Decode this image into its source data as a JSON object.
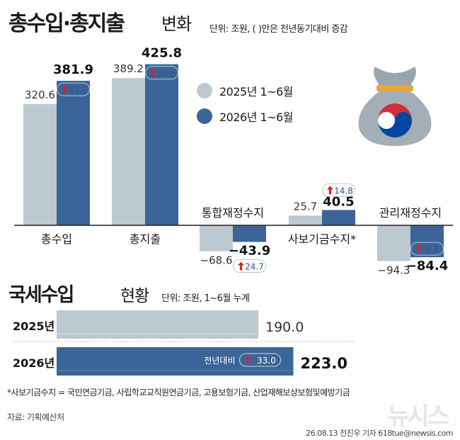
{
  "header": {
    "title": "총수입·총지출",
    "title_sub": "변화",
    "unit": "단위: 조원, ( )안은 전년동기대비 증감"
  },
  "colors": {
    "prev": "#bcc9d1",
    "curr": "#3b6598",
    "up_arrow": "#d8222a",
    "text": "#1b1b1b"
  },
  "legend": [
    {
      "label": "2025년 1~6월",
      "color": "#bcc9d1"
    },
    {
      "label": "2026년 1~6월",
      "color": "#3b6598"
    }
  ],
  "icon": "money-bag-icon",
  "chart_data": [
    {
      "type": "bar",
      "categories": [
        "총수입",
        "총지출",
        "통합재정수지",
        "사보기금수지*",
        "관리재정수지"
      ],
      "series": [
        {
          "name": "2025년 1~6월",
          "values": [
            320.6,
            389.2,
            -68.6,
            25.7,
            -94.3
          ]
        },
        {
          "name": "2026년 1~6월",
          "values": [
            381.9,
            425.8,
            -43.9,
            40.5,
            -84.4
          ]
        }
      ],
      "changes": [
        61.3,
        36.6,
        24.7,
        14.8,
        9.9
      ],
      "value_labels_prev": [
        "320.6",
        "389.2",
        "−68.6",
        "25.7",
        "−94.3"
      ],
      "value_labels_curr": [
        "381.9",
        "425.8",
        "−43.9",
        "40.5",
        "−84.4"
      ],
      "change_labels": [
        "61.3",
        "36.6",
        "24.7",
        "14.8",
        "9.9"
      ]
    },
    {
      "type": "bar",
      "orientation": "horizontal",
      "title": "국세수입",
      "title_sub": "현황",
      "unit": "단위: 조원, 1~6월 누계",
      "categories": [
        "2025년",
        "2026년"
      ],
      "values": [
        190.0,
        223.0
      ],
      "value_labels": [
        "190.0",
        "223.0"
      ],
      "change_prefix": "전년대비",
      "change": 33.0,
      "change_label": "33.0"
    }
  ],
  "footnote": "*사보기금수지 = 국민연금기금, 사립학교교직원연금기금, 고용보험기금, 산업재해보상보험및예방기금",
  "source": "자료: 기획예산처",
  "credit": "26.08.13 전진우 기자 618tue@newsis.com",
  "watermark": "뉴시스"
}
